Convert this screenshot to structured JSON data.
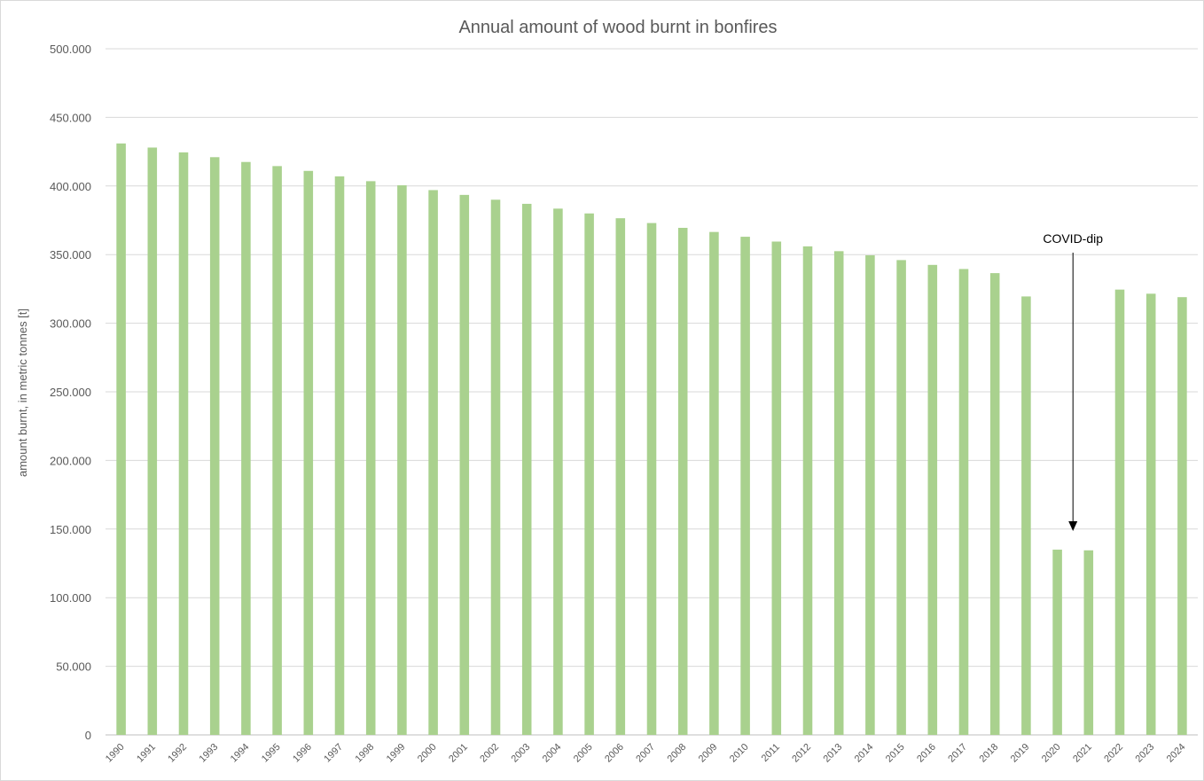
{
  "chart_data": {
    "type": "bar",
    "title": "Annual amount of wood burnt in bonfires",
    "xlabel": "",
    "ylabel": "amount burnt, in metric tonnes [t]",
    "ylim": [
      0,
      500000
    ],
    "yticks": [
      0,
      50000,
      100000,
      150000,
      200000,
      250000,
      300000,
      350000,
      400000,
      450000,
      500000
    ],
    "ytick_labels": [
      "0",
      "50.000",
      "100.000",
      "150.000",
      "200.000",
      "250.000",
      "300.000",
      "350.000",
      "400.000",
      "450.000",
      "500.000"
    ],
    "grid": true,
    "bar_color": "#a9d18e",
    "categories": [
      "1990",
      "1991",
      "1992",
      "1993",
      "1994",
      "1995",
      "1996",
      "1997",
      "1998",
      "1999",
      "2000",
      "2001",
      "2002",
      "2003",
      "2004",
      "2005",
      "2006",
      "2007",
      "2008",
      "2009",
      "2010",
      "2011",
      "2012",
      "2013",
      "2014",
      "2015",
      "2016",
      "2017",
      "2018",
      "2019",
      "2020",
      "2021",
      "2022",
      "2023",
      "2024"
    ],
    "values": [
      431000,
      428000,
      424500,
      421000,
      417500,
      414500,
      411000,
      407000,
      403500,
      400500,
      397000,
      393500,
      390000,
      387000,
      383500,
      380000,
      376500,
      373000,
      369500,
      366500,
      363000,
      359500,
      356000,
      352500,
      349500,
      346000,
      342500,
      339500,
      336500,
      319500,
      135000,
      134500,
      324500,
      321500,
      319000
    ],
    "annotations": [
      {
        "text": "COVID-dip",
        "arrow_to_value": 155000,
        "arrow_between": [
          "2020",
          "2021"
        ]
      }
    ]
  }
}
